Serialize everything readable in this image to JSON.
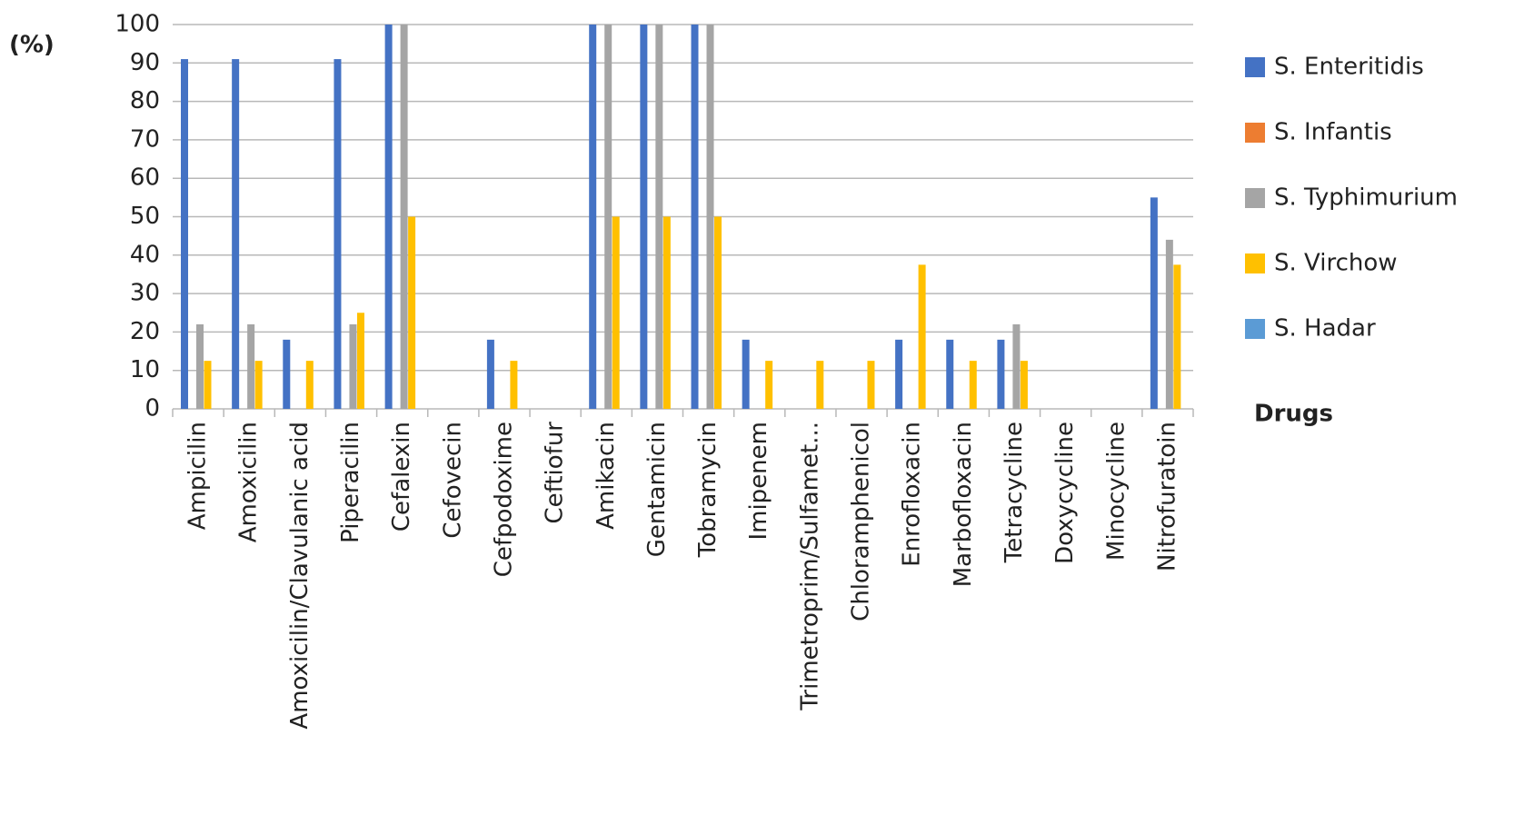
{
  "chart_data": {
    "type": "bar",
    "y_label": "(%)",
    "x_label": "Drugs",
    "categories": [
      "Ampicilin",
      "Amoxicilin",
      "Amoxicilin/Clavulanic acid",
      "Piperacilin",
      "Cefalexin",
      "Cefovecin",
      "Cefpodoxime",
      "Ceftiofur",
      "Amikacin",
      "Gentamicin",
      "Tobramycin",
      "Imipenem",
      "Trimetroprim/Sulfamet...",
      "Chloramphenicol",
      "Enrofloxacin",
      "Marbofloxacin",
      "Tetracycline",
      "Doxycycline",
      "Minocycline",
      "Nitrofuratoin"
    ],
    "series": [
      {
        "name": "S. Enteritidis",
        "color": "#4472c4",
        "values": [
          91,
          91,
          18,
          91,
          100,
          0,
          18,
          0,
          100,
          100,
          100,
          18,
          0,
          0,
          18,
          18,
          18,
          0,
          0,
          55
        ]
      },
      {
        "name": "S. Infantis",
        "color": "#ed7d31",
        "values": [
          0,
          0,
          0,
          0,
          0,
          0,
          0,
          0,
          0,
          0,
          0,
          0,
          0,
          0,
          0,
          0,
          0,
          0,
          0,
          0
        ]
      },
      {
        "name": "S. Typhimurium",
        "color": "#a5a5a5",
        "values": [
          22,
          22,
          0,
          22,
          100,
          0,
          0,
          0,
          100,
          100,
          100,
          0,
          0,
          0,
          0,
          0,
          22,
          0,
          0,
          44
        ]
      },
      {
        "name": "S. Virchow",
        "color": "#ffc000",
        "values": [
          12.5,
          12.5,
          12.5,
          25,
          50,
          0,
          12.5,
          0,
          50,
          50,
          50,
          12.5,
          12.5,
          12.5,
          37.5,
          12.5,
          12.5,
          0,
          0,
          37.5
        ]
      },
      {
        "name": "S. Hadar",
        "color": "#5b9bd5",
        "values": [
          0,
          0,
          0,
          0,
          0,
          0,
          0,
          0,
          0,
          0,
          0,
          0,
          0,
          0,
          0,
          0,
          0,
          0,
          0,
          0
        ]
      }
    ],
    "ylim": [
      0,
      100
    ],
    "yticks": [
      0,
      10,
      20,
      30,
      40,
      50,
      60,
      70,
      80,
      90,
      100
    ],
    "grid": true
  }
}
